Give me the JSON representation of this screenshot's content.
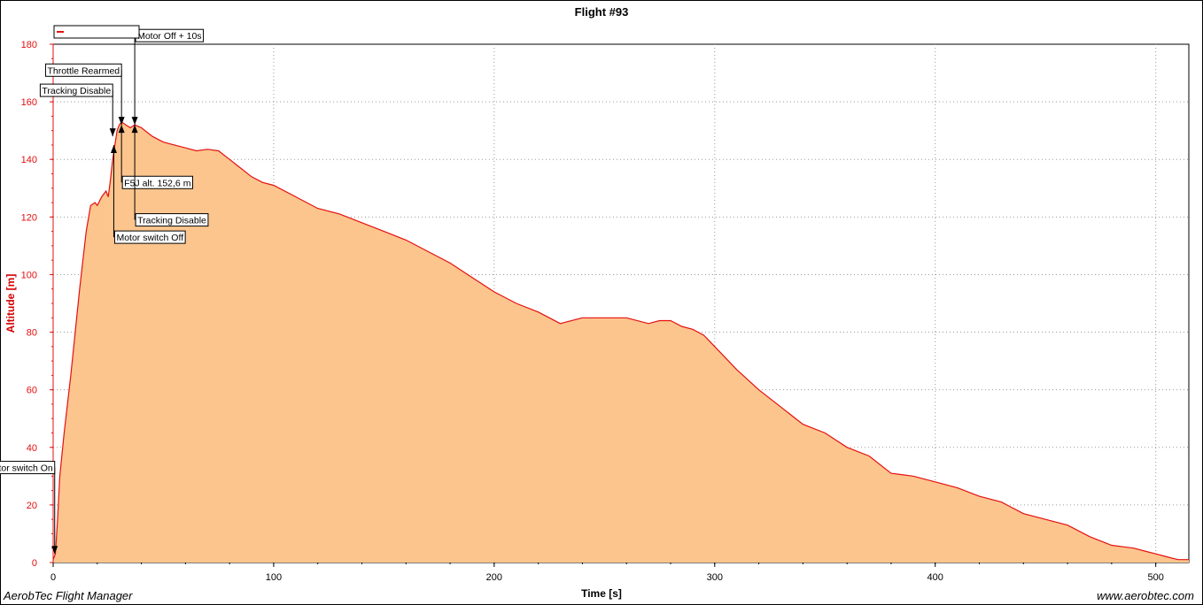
{
  "window": {
    "app_name": "AerobTec Flight Manager",
    "website": "www.aerobtec.com"
  },
  "colors": {
    "line": "#e31010",
    "fill": "#fcc58e",
    "axis_left": "#e31010",
    "grid": "#999999"
  },
  "chart_data": {
    "type": "area",
    "title": "Flight #93",
    "xlabel": "Time [s]",
    "ylabel": "Altitude [m]",
    "xlim": [
      0,
      515
    ],
    "ylim": [
      0,
      180
    ],
    "x_ticks": [
      0,
      100,
      200,
      300,
      400,
      500
    ],
    "y_ticks": [
      0,
      20,
      40,
      60,
      80,
      100,
      120,
      140,
      160,
      180
    ],
    "grid": true,
    "legend_placement": "top-left",
    "series": [
      {
        "name": "Motor Off + 10s",
        "x": [
          0,
          1,
          2,
          3,
          5,
          8,
          12,
          15,
          17,
          19,
          20,
          22,
          24,
          25,
          26,
          27,
          28,
          29,
          30,
          31,
          33,
          35,
          37,
          40,
          45,
          50,
          55,
          60,
          65,
          70,
          75,
          80,
          85,
          90,
          95,
          100,
          110,
          120,
          130,
          140,
          150,
          160,
          170,
          180,
          190,
          200,
          210,
          220,
          225,
          230,
          240,
          250,
          260,
          270,
          275,
          280,
          285,
          290,
          295,
          300,
          310,
          320,
          330,
          340,
          350,
          360,
          370,
          380,
          390,
          400,
          410,
          420,
          430,
          440,
          450,
          460,
          470,
          480,
          490,
          495,
          500,
          505,
          510,
          515
        ],
        "values": [
          1,
          3,
          15,
          30,
          45,
          65,
          95,
          115,
          124,
          125,
          124,
          127,
          129,
          127,
          133,
          140,
          145,
          150,
          152,
          153,
          152,
          151,
          152,
          151,
          148,
          146,
          145,
          144,
          143,
          143.5,
          143,
          140,
          137,
          134,
          132,
          131,
          127,
          123,
          121,
          118,
          115,
          112,
          108,
          104,
          99,
          94,
          90,
          87,
          85,
          83,
          85,
          85,
          85,
          83,
          84,
          84,
          82,
          81,
          79,
          75,
          67,
          60,
          54,
          48,
          45,
          40,
          37,
          31,
          30,
          28,
          26,
          23,
          21,
          17,
          15,
          13,
          9,
          6,
          5,
          4,
          3,
          2,
          1,
          1
        ]
      }
    ],
    "annotations": [
      {
        "label": "Motor switch On",
        "x": 0.7,
        "y": 3,
        "box_y": 33,
        "side": "left"
      },
      {
        "label": "Tracking Disable",
        "x": 27,
        "y": 148,
        "box_y": 164,
        "side": "left"
      },
      {
        "label": "Motor switch Off",
        "x": 27.5,
        "y": 145,
        "box_y": 113,
        "side": "right"
      },
      {
        "label": "Throttle Rearmed",
        "x": 31,
        "y": 152,
        "box_y": 171,
        "side": "left"
      },
      {
        "label": "F5J alt. 152,6 m",
        "x": 31,
        "y": 152,
        "box_y": 132,
        "side": "right"
      },
      {
        "label": "Tracking Disable",
        "x": 37,
        "y": 152,
        "box_y": 119,
        "side": "right"
      },
      {
        "label": "Motor Off + 10s",
        "x": 37,
        "y": 152,
        "box_y": 183,
        "side": "right"
      }
    ]
  }
}
